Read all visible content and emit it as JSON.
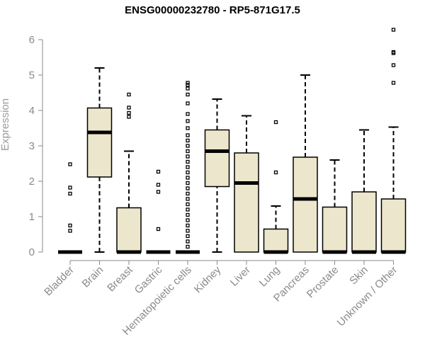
{
  "chart_data": {
    "type": "boxplot",
    "title": "ENSG00000232780 - RP5-871G17.5",
    "xlabel": "",
    "ylabel": "Expression",
    "ylim": [
      0,
      6.3
    ],
    "yticks": [
      0,
      1,
      2,
      3,
      4,
      5,
      6
    ],
    "grid": false,
    "box_fill": "#ece6cc",
    "box_stroke": "#000000",
    "axis_color": "#8a8a8a",
    "categories": [
      "Bladder",
      "Brain",
      "Breast",
      "Gastric",
      "Hematopoietic cells",
      "Kidney",
      "Liver",
      "Lung",
      "Pancreas",
      "Prostate",
      "Skin",
      "Unknown / Other"
    ],
    "boxes": [
      {
        "category": "Bladder",
        "min": 0,
        "q1": 0,
        "median": 0,
        "q3": 0,
        "max": 0,
        "outliers": [
          0.6,
          0.75,
          1.65,
          1.82,
          2.48
        ]
      },
      {
        "category": "Brain",
        "min": 0,
        "q1": 2.12,
        "median": 3.38,
        "q3": 4.07,
        "max": 5.2,
        "outliers": []
      },
      {
        "category": "Breast",
        "min": 0,
        "q1": 0,
        "median": 0,
        "q3": 1.25,
        "max": 2.85,
        "outliers": [
          3.82,
          3.93,
          4.08,
          4.45
        ]
      },
      {
        "category": "Gastric",
        "min": 0,
        "q1": 0,
        "median": 0,
        "q3": 0,
        "max": 0,
        "outliers": [
          0.65,
          1.7,
          1.9,
          2.27
        ]
      },
      {
        "category": "Hematopoietic cells",
        "min": 0,
        "q1": 0,
        "median": 0,
        "q3": 0,
        "max": 0,
        "outliers": [
          0.15,
          0.3,
          0.45,
          0.6,
          0.75,
          0.9,
          1.05,
          1.2,
          1.35,
          1.5,
          1.65,
          1.8,
          1.95,
          2.1,
          2.25,
          2.4,
          2.55,
          2.7,
          2.85,
          3.0,
          3.15,
          3.3,
          3.5,
          3.7,
          3.9,
          4.2,
          4.45,
          4.62,
          4.72,
          4.78
        ]
      },
      {
        "category": "Kidney",
        "min": 0,
        "q1": 1.85,
        "median": 2.85,
        "q3": 3.45,
        "max": 4.32,
        "outliers": []
      },
      {
        "category": "Liver",
        "min": 0,
        "q1": 0,
        "median": 1.95,
        "q3": 2.8,
        "max": 3.85,
        "outliers": []
      },
      {
        "category": "Lung",
        "min": 0,
        "q1": 0,
        "median": 0,
        "q3": 0.65,
        "max": 1.3,
        "outliers": [
          2.25,
          3.67
        ]
      },
      {
        "category": "Pancreas",
        "min": 0,
        "q1": 0,
        "median": 1.5,
        "q3": 2.68,
        "max": 5.0,
        "outliers": []
      },
      {
        "category": "Prostate",
        "min": 0,
        "q1": 0,
        "median": 0,
        "q3": 1.27,
        "max": 2.6,
        "outliers": []
      },
      {
        "category": "Skin",
        "min": 0,
        "q1": 0,
        "median": 0,
        "q3": 1.7,
        "max": 3.45,
        "outliers": []
      },
      {
        "category": "Unknown / Other",
        "min": 0,
        "q1": 0,
        "median": 0,
        "q3": 1.5,
        "max": 3.53,
        "outliers": [
          4.78,
          5.28,
          5.62,
          5.65,
          6.28
        ]
      }
    ]
  }
}
